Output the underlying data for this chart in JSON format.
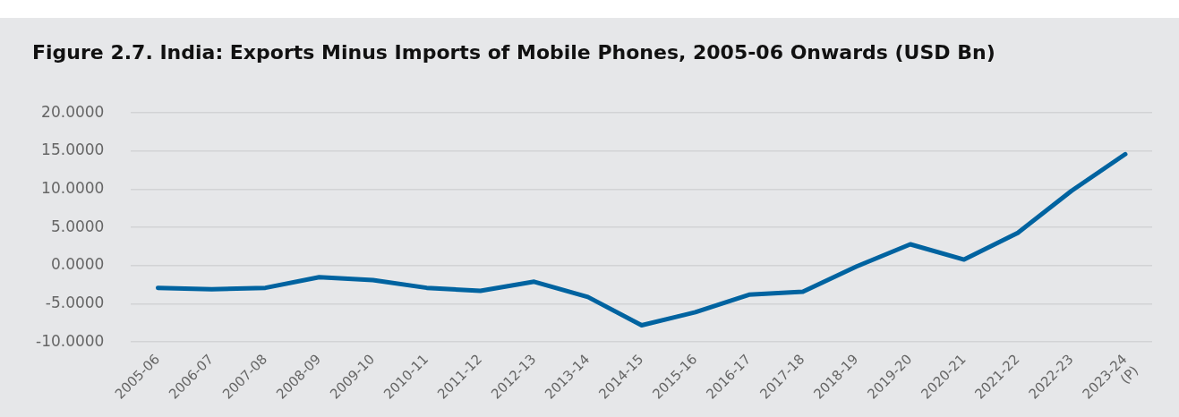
{
  "chart_data": {
    "type": "line",
    "title": "Figure 2.7. India: Exports Minus Imports of Mobile Phones, 2005-06 Onwards (USD Bn)",
    "categories": [
      "2005-06",
      "2006-07",
      "2007-08",
      "2008-09",
      "2009-10",
      "2010-11",
      "2011-12",
      "2012-13",
      "2013-14",
      "2014-15",
      "2015-16",
      "2016-17",
      "2017-18",
      "2018-19",
      "2019-20",
      "2020-21",
      "2021-22",
      "2022-23",
      "2023-24 (P)"
    ],
    "series": [
      {
        "color": "#0063a0",
        "values": [
          -2.9,
          -3.1,
          -2.9,
          -1.5,
          -1.9,
          -2.9,
          -3.3,
          -2.1,
          -4.1,
          -7.8,
          -6.1,
          -3.8,
          -3.4,
          -0.1,
          2.8,
          0.8,
          4.3,
          9.8,
          14.6
        ]
      }
    ],
    "ylim": [
      -10,
      20
    ],
    "yticks": [
      {
        "value": -10,
        "label": "-10.0000"
      },
      {
        "value": -5,
        "label": "-5.0000"
      },
      {
        "value": 0,
        "label": "0.0000"
      },
      {
        "value": 5,
        "label": "5.0000"
      },
      {
        "value": 10,
        "label": "10.0000"
      },
      {
        "value": 15,
        "label": "15.0000"
      },
      {
        "value": 20,
        "label": "20.0000"
      }
    ],
    "grid": "y",
    "legend": false,
    "marker": "none",
    "line_style": "solid"
  }
}
